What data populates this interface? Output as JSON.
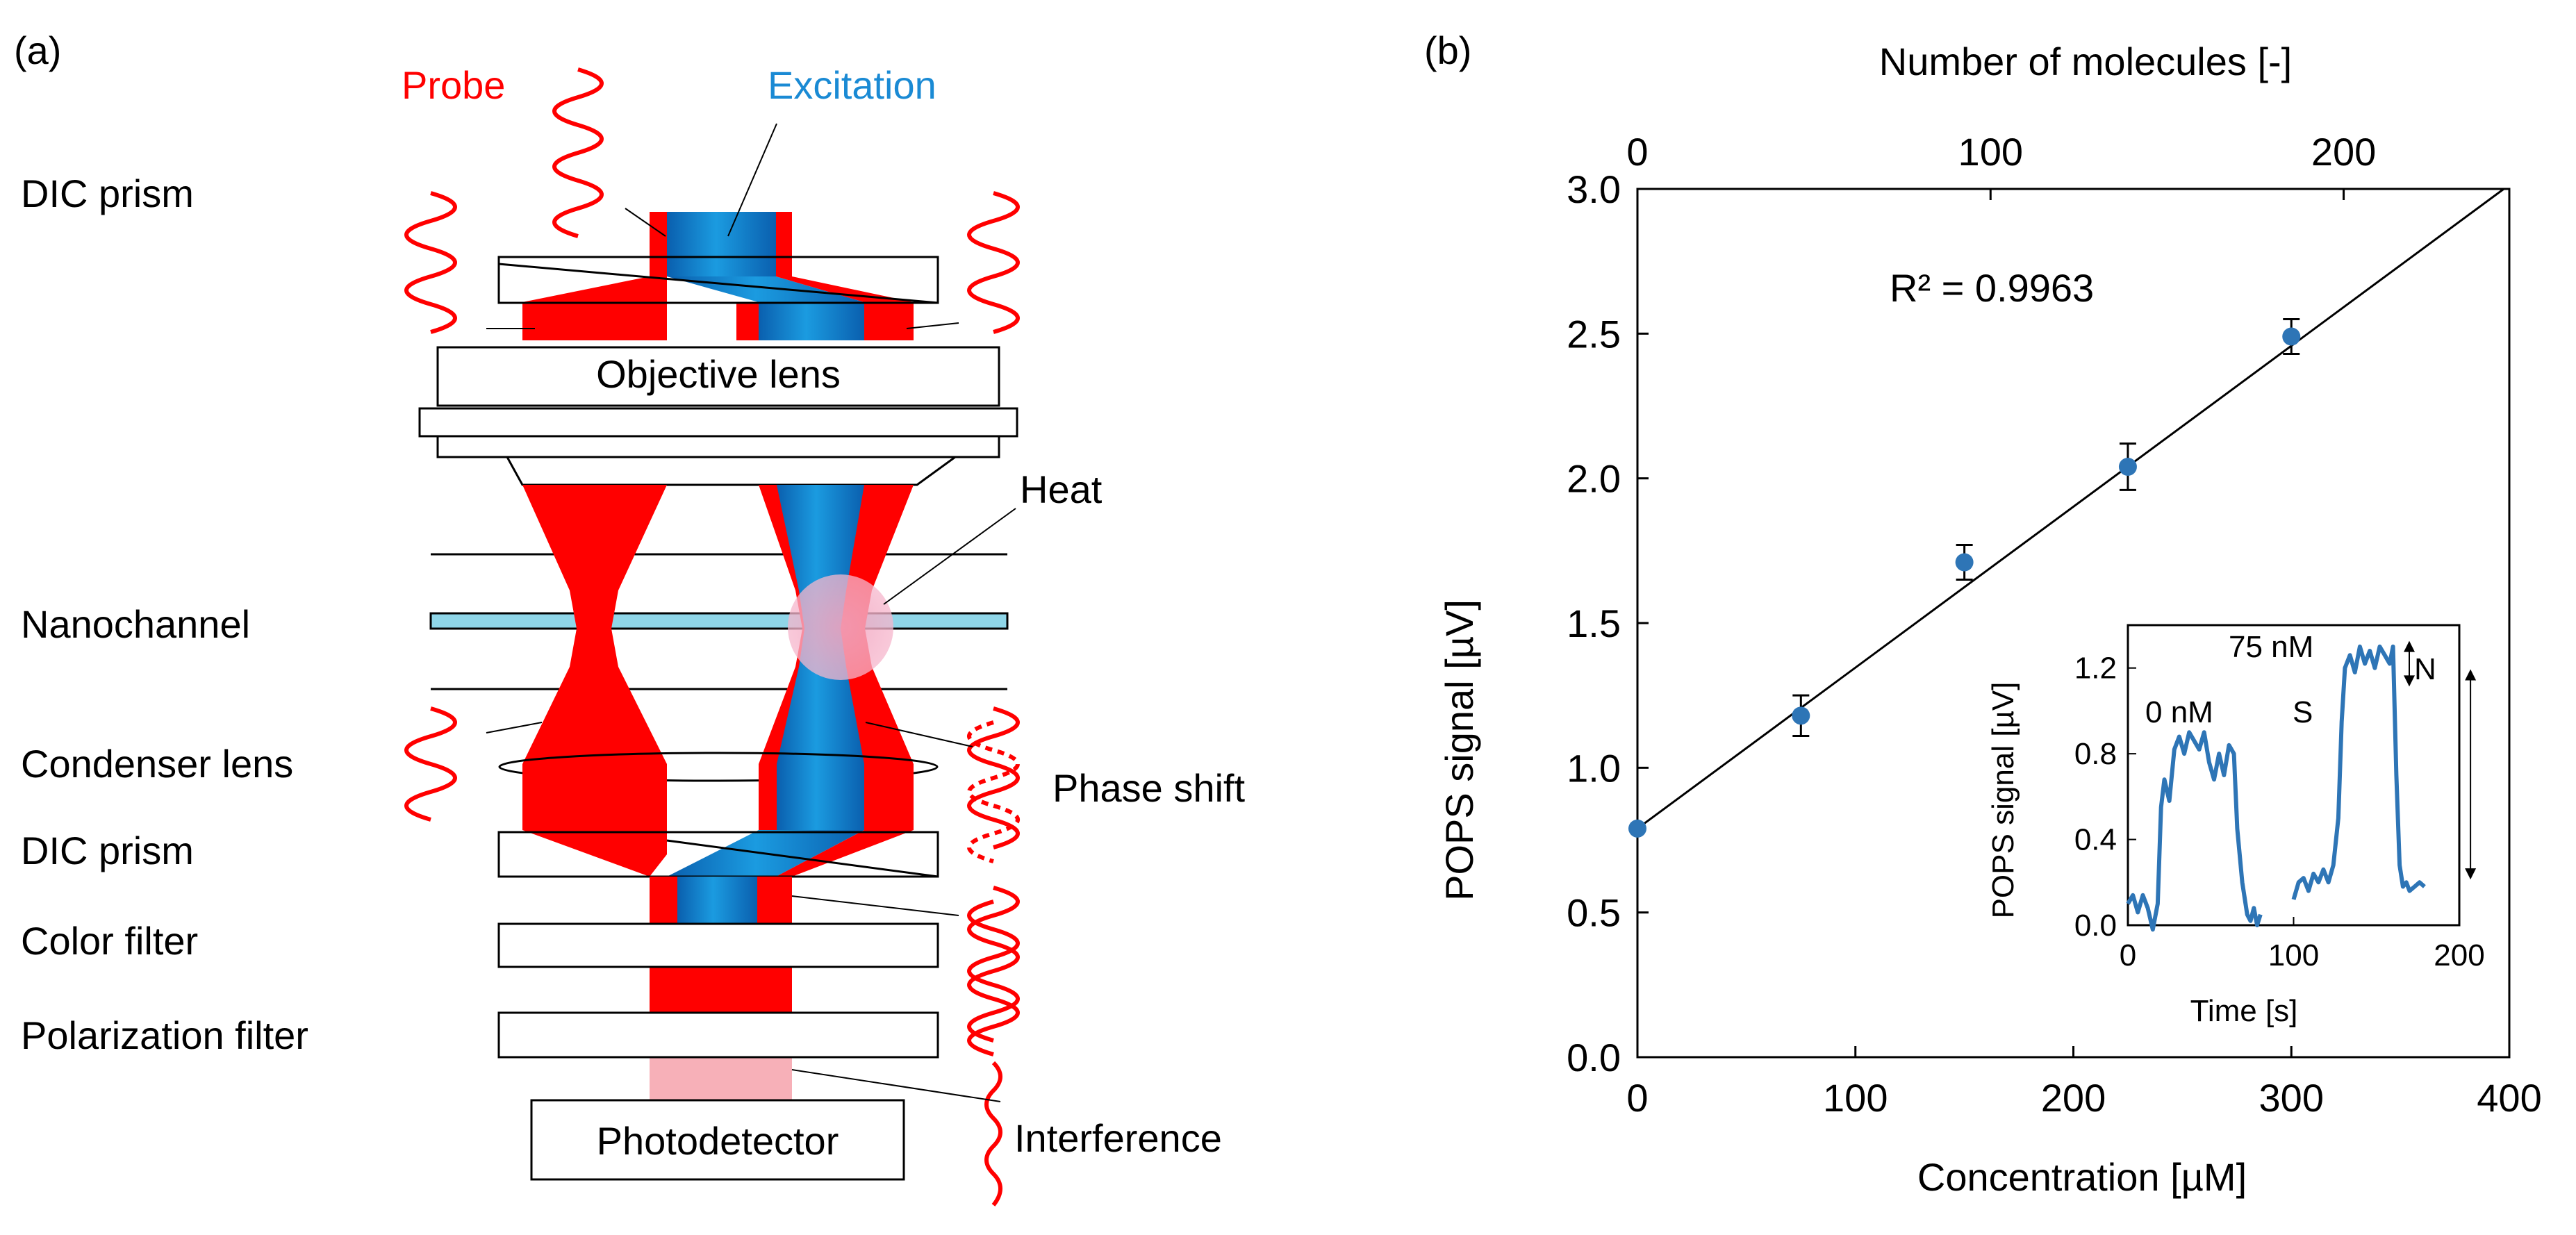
{
  "panel_a": {
    "panel_label": "(a)",
    "probe_label": "Probe",
    "excitation_label": "Excitation",
    "probe_color": "#ff0000",
    "excitation_color": "#1a8ad4",
    "channel_color": "#8fd6e8",
    "component_labels": {
      "dic_prism_top": "DIC prism",
      "nanochannel": "Nanochannel",
      "condenser_lens": "Condenser lens",
      "dic_prism_bottom": "DIC prism",
      "color_filter": "Color filter",
      "polarization_filter": "Polarization filter"
    },
    "objective_lens": "Objective lens",
    "photodetector": "Photodetector",
    "heat": "Heat",
    "phase_shift": "Phase shift",
    "interference": "Interference"
  },
  "panel_b": {
    "panel_label": "(b)",
    "marker_color": "#2e75b6",
    "chart_data": [
      {
        "type": "scatter",
        "title": "",
        "xlabel": "Concentration [µM]",
        "ylabel": "POPS signal [µV]",
        "top_xlabel": "Number of molecules [-]",
        "xlim": [
          0,
          400
        ],
        "ylim": [
          0,
          3.0
        ],
        "x_ticks": [
          0,
          100,
          200,
          300,
          400
        ],
        "y_ticks": [
          "0.0",
          "0.5",
          "1.0",
          "1.5",
          "2.0",
          "2.5",
          "3.0"
        ],
        "top_x_ticks": [
          {
            "label": "0",
            "concentration": 0
          },
          {
            "label": "100",
            "concentration": 162
          },
          {
            "label": "200",
            "concentration": 324
          }
        ],
        "points": [
          {
            "x": 0,
            "y": 0.79,
            "err": 0.0
          },
          {
            "x": 75,
            "y": 1.18,
            "err": 0.07
          },
          {
            "x": 150,
            "y": 1.71,
            "err": 0.06
          },
          {
            "x": 225,
            "y": 2.04,
            "err": 0.08
          },
          {
            "x": 300,
            "y": 2.49,
            "err": 0.06
          }
        ],
        "fit": {
          "slope": 0.00556,
          "intercept": 0.79
        },
        "r_squared": "R² = 0.9963",
        "grid": false
      },
      {
        "type": "line",
        "title": "",
        "inset": true,
        "xlabel": "Time [s]",
        "ylabel": "POPS signal [µV]",
        "xlim": [
          0,
          200
        ],
        "ylim": [
          0,
          1.4
        ],
        "x_ticks": [
          0,
          100,
          200
        ],
        "y_ticks": [
          "0.0",
          "0.4",
          "0.8",
          "1.2"
        ],
        "annotations": {
          "zero": "0 nM",
          "seventy_five": "75 nM",
          "signal": "S",
          "noise": "N"
        },
        "series": [
          {
            "name": "0 nM",
            "x": [
              0,
              3,
              6,
              9,
              12,
              15,
              18,
              20,
              22,
              25,
              28,
              31,
              34,
              37,
              40,
              43,
              46,
              49,
              52,
              55,
              58,
              61,
              64,
              66,
              69,
              72,
              74,
              76,
              78,
              80
            ],
            "y": [
              0.1,
              0.14,
              0.06,
              0.14,
              0.08,
              -0.02,
              0.1,
              0.55,
              0.68,
              0.58,
              0.82,
              0.88,
              0.8,
              0.9,
              0.86,
              0.82,
              0.9,
              0.76,
              0.68,
              0.8,
              0.7,
              0.84,
              0.8,
              0.45,
              0.2,
              0.05,
              0.02,
              0.08,
              0.0,
              0.05
            ]
          },
          {
            "name": "75 nM",
            "x": [
              100,
              103,
              106,
              109,
              112,
              115,
              118,
              121,
              124,
              127,
              129,
              131,
              134,
              137,
              140,
              143,
              146,
              149,
              152,
              155,
              158,
              160,
              162,
              164,
              166,
              168,
              170,
              173,
              176,
              179
            ],
            "y": [
              0.12,
              0.2,
              0.22,
              0.16,
              0.24,
              0.2,
              0.26,
              0.2,
              0.28,
              0.5,
              0.95,
              1.2,
              1.26,
              1.18,
              1.3,
              1.22,
              1.28,
              1.2,
              1.3,
              1.26,
              1.22,
              1.3,
              0.7,
              0.28,
              0.18,
              0.2,
              0.16,
              0.18,
              0.2,
              0.18
            ]
          }
        ]
      }
    ]
  }
}
